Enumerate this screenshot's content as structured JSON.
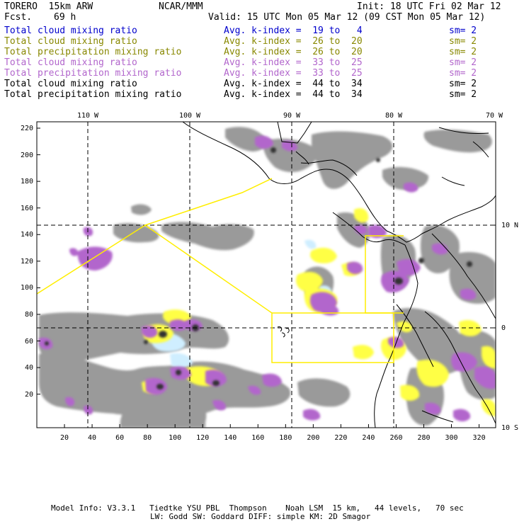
{
  "header": {
    "model": "TORERO  15km ARW",
    "org": "NCAR/MMM",
    "init": "Init: 18 UTC Fri 02 Mar 12",
    "fcst_label": "Fcst.",
    "fcst_value": "69 h",
    "valid": "Valid: 15 UTC Mon 05 Mar 12 (09 CST Mon 05 Mar 12)"
  },
  "legend": [
    {
      "name": "Total cloud mixing ratio",
      "index": "Avg. k-index =  19 to   4",
      "sm": "sm= 2",
      "color": "#0000cc"
    },
    {
      "name": "Total cloud mixing ratio",
      "index": "Avg. k-index =  26 to  20",
      "sm": "sm= 2",
      "color": "#888800"
    },
    {
      "name": "Total precipitation mixing ratio",
      "index": "Avg. k-index =  26 to  20",
      "sm": "sm= 2",
      "color": "#888800"
    },
    {
      "name": "Total cloud mixing ratio",
      "index": "Avg. k-index =  33 to  25",
      "sm": "sm= 2",
      "color": "#b266cc"
    },
    {
      "name": "Total precipitation mixing ratio",
      "index": "Avg. k-index =  33 to  25",
      "sm": "sm= 2",
      "color": "#b266cc"
    },
    {
      "name": "Total cloud mixing ratio",
      "index": "Avg. k-index =  44 to  34",
      "sm": "sm= 2",
      "color": "#000000"
    },
    {
      "name": "Total precipitation mixing ratio",
      "index": "Avg. k-index =  44 to  34",
      "sm": "sm= 2",
      "color": "#000000"
    }
  ],
  "map": {
    "lon_labels": [
      "110 W",
      "100 W",
      "90 W",
      "80 W",
      "70 W"
    ],
    "lat_labels": [
      "10 N",
      "0",
      "10 S"
    ],
    "x_ticks": [
      "20",
      "40",
      "60",
      "80",
      "100",
      "120",
      "140",
      "160",
      "180",
      "200",
      "220",
      "240",
      "260",
      "280",
      "300",
      "320"
    ],
    "y_ticks": [
      "220",
      "200",
      "180",
      "160",
      "140",
      "120",
      "100",
      "80",
      "60",
      "40",
      "20"
    ],
    "colors": {
      "gray": "#999999",
      "dark": "#555555",
      "purple": "#b266cc",
      "yellow": "#ffff44",
      "lightblue": "#cceeff",
      "outline": "#ffee00"
    }
  },
  "footer": {
    "line1": "Model Info: V3.3.1   Tiedtke YSU PBL  Thompson    Noah LSM  15 km,   44 levels,   70 sec",
    "line2": "LW: Godd SW: Goddard DIFF: simple KM: 2D Smagor"
  }
}
